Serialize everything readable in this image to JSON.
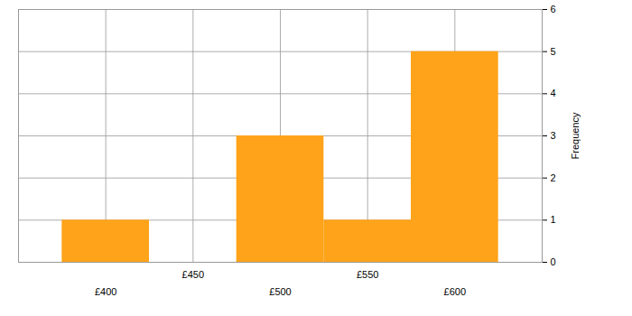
{
  "chart_data": {
    "type": "histogram",
    "bins": [
      375,
      425,
      475,
      525,
      575,
      625
    ],
    "values": [
      1,
      0,
      3,
      1,
      5
    ],
    "color": "#ffa31a",
    "xlim": [
      350,
      650
    ],
    "xticks": [
      {
        "value": 400,
        "label": "£400"
      },
      {
        "value": 450,
        "label": "£450"
      },
      {
        "value": 500,
        "label": "£500"
      },
      {
        "value": 550,
        "label": "£550"
      },
      {
        "value": 600,
        "label": "£600"
      }
    ],
    "ylim": [
      0,
      6
    ],
    "yticks": [
      0,
      1,
      2,
      3,
      4,
      5,
      6
    ],
    "y_label": "Frequency",
    "grid": true
  }
}
